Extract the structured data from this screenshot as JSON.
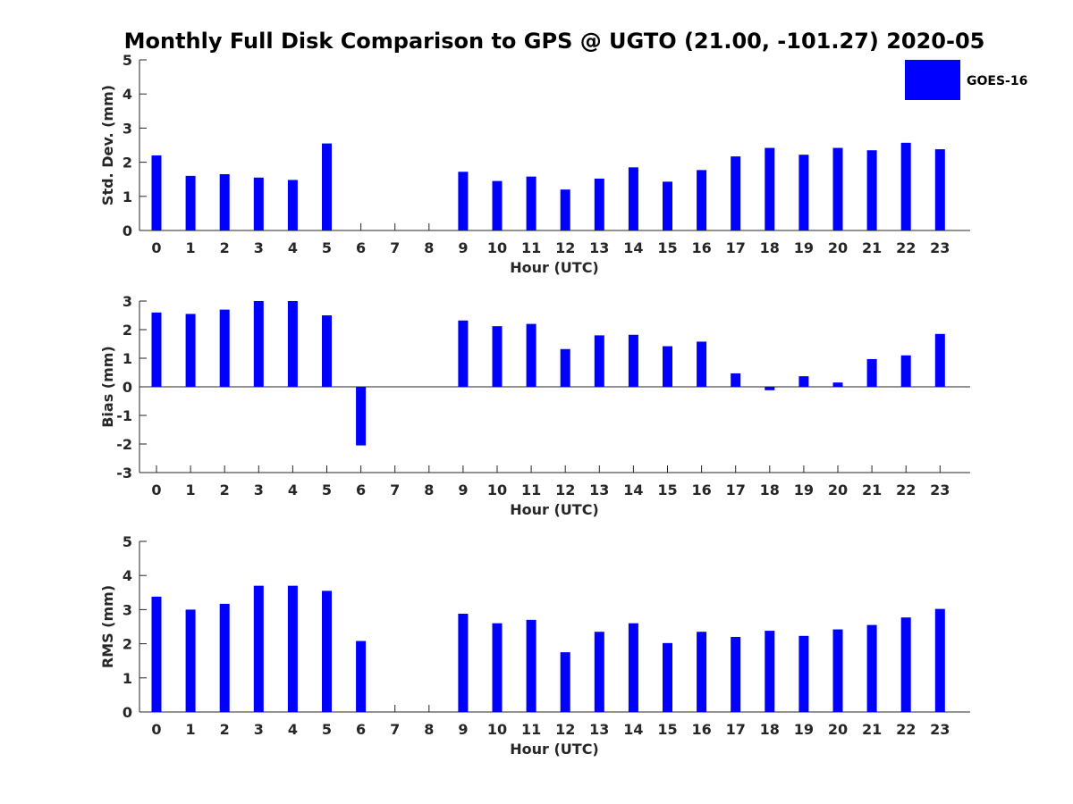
{
  "chart_data": {
    "type": "bar",
    "title": "Monthly Full Disk Comparison to GPS @ UGTO (21.00, -101.27) 2020-05",
    "legend": {
      "label": "GOES-16",
      "placement": "top-right"
    },
    "colors": {
      "bar": "#0000ff",
      "axis": "#262626",
      "text": "#262626"
    },
    "categories": [
      "0",
      "1",
      "2",
      "3",
      "4",
      "5",
      "6",
      "7",
      "8",
      "9",
      "10",
      "11",
      "12",
      "13",
      "14",
      "15",
      "16",
      "17",
      "18",
      "19",
      "20",
      "21",
      "22",
      "23"
    ],
    "panels": [
      {
        "name": "std-dev",
        "ylabel": "Std. Dev. (mm)",
        "xlabel": "Hour (UTC)",
        "ylim": [
          0,
          5
        ],
        "yticks": [
          0,
          1,
          2,
          3,
          4,
          5
        ],
        "series": [
          {
            "name": "GOES-16",
            "values": [
              2.2,
              1.6,
              1.65,
              1.55,
              1.48,
              2.55,
              null,
              null,
              null,
              1.72,
              1.45,
              1.58,
              1.2,
              1.52,
              1.85,
              1.43,
              1.77,
              2.17,
              2.42,
              2.22,
              2.42,
              2.35,
              2.57,
              2.38
            ]
          }
        ]
      },
      {
        "name": "bias",
        "ylabel": "Bias (mm)",
        "xlabel": "Hour (UTC)",
        "ylim": [
          -3,
          3
        ],
        "yticks": [
          -3,
          -2,
          -1,
          0,
          1,
          2,
          3
        ],
        "series": [
          {
            "name": "GOES-16",
            "values": [
              2.6,
              2.55,
              2.7,
              3.0,
              3.0,
              2.5,
              -2.05,
              null,
              null,
              2.32,
              2.12,
              2.2,
              1.32,
              1.8,
              1.82,
              1.42,
              1.58,
              0.47,
              -0.12,
              0.37,
              0.15,
              0.97,
              1.1,
              1.85
            ]
          }
        ]
      },
      {
        "name": "rms",
        "ylabel": "RMS (mm)",
        "xlabel": "Hour (UTC)",
        "ylim": [
          0,
          5
        ],
        "yticks": [
          0,
          1,
          2,
          3,
          4,
          5
        ],
        "series": [
          {
            "name": "GOES-16",
            "values": [
              3.38,
              3.0,
              3.17,
              3.7,
              3.7,
              3.55,
              2.08,
              null,
              null,
              2.88,
              2.6,
              2.7,
              1.75,
              2.35,
              2.6,
              2.02,
              2.35,
              2.2,
              2.38,
              2.23,
              2.42,
              2.55,
              2.77,
              3.02
            ]
          }
        ]
      }
    ]
  }
}
